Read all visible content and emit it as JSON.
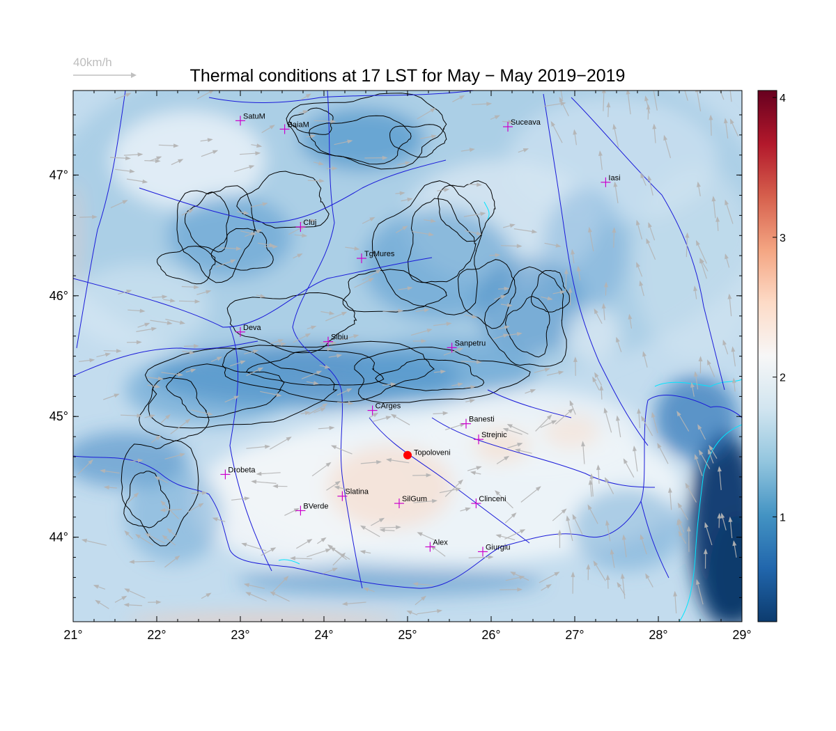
{
  "title": "Thermal conditions at 17 LST for May − May  2019−2019",
  "wind_reference": {
    "label": "40km/h",
    "speed_kmh": 40
  },
  "map": {
    "lon_range": [
      21,
      29
    ],
    "lat_range": [
      43.3,
      47.7
    ],
    "lon_ticks": [
      "21°",
      "22°",
      "23°",
      "24°",
      "25°",
      "26°",
      "27°",
      "28°",
      "29°"
    ],
    "lat_ticks": [
      "44°",
      "45°",
      "46°",
      "47°"
    ],
    "lon_tick_values": [
      21,
      22,
      23,
      24,
      25,
      26,
      27,
      28,
      29
    ],
    "lat_tick_values": [
      44,
      45,
      46,
      47
    ]
  },
  "colorbar": {
    "min": 0.25,
    "max": 4.05,
    "ticks": [
      "1",
      "2",
      "3",
      "4"
    ],
    "tick_values": [
      1,
      2,
      3,
      4
    ],
    "colors": [
      "#0c3b6e",
      "#2166ac",
      "#4393c3",
      "#92c5de",
      "#d1e5f0",
      "#f7f7f7",
      "#fddbc7",
      "#f4a582",
      "#d6604d",
      "#b2182b",
      "#67001f"
    ]
  },
  "cities": [
    {
      "name": "SatuM",
      "lon": 23.0,
      "lat": 47.45
    },
    {
      "name": "BaiaM",
      "lon": 23.53,
      "lat": 47.38
    },
    {
      "name": "Suceava",
      "lon": 26.2,
      "lat": 47.4
    },
    {
      "name": "Iasi",
      "lon": 27.37,
      "lat": 46.94
    },
    {
      "name": "Cluj",
      "lon": 23.72,
      "lat": 46.57
    },
    {
      "name": "TgMures",
      "lon": 24.45,
      "lat": 46.31
    },
    {
      "name": "Deva",
      "lon": 23.0,
      "lat": 45.7
    },
    {
      "name": "Sibiu",
      "lon": 24.05,
      "lat": 45.62
    },
    {
      "name": "Sanpetru",
      "lon": 25.53,
      "lat": 45.57
    },
    {
      "name": "CArges",
      "lon": 24.58,
      "lat": 45.05
    },
    {
      "name": "Banesti",
      "lon": 25.7,
      "lat": 44.94
    },
    {
      "name": "Strejnic",
      "lon": 25.85,
      "lat": 44.81
    },
    {
      "name": "Drobeta",
      "lon": 22.82,
      "lat": 44.52
    },
    {
      "name": "Slatina",
      "lon": 24.22,
      "lat": 44.34
    },
    {
      "name": "SilGum",
      "lon": 24.9,
      "lat": 44.28
    },
    {
      "name": "Clinceni",
      "lon": 25.82,
      "lat": 44.28
    },
    {
      "name": "BVerde",
      "lon": 23.72,
      "lat": 44.22
    },
    {
      "name": "Alex",
      "lon": 25.27,
      "lat": 43.92
    },
    {
      "name": "Giurgiu",
      "lon": 25.9,
      "lat": 43.88
    }
  ],
  "site": {
    "name": "Topoloveni",
    "lon": 25.0,
    "lat": 44.68
  },
  "colors": {
    "city_marker": "#cc00cc",
    "site_marker": "#ff0000",
    "rivers": "#1a1ad9",
    "contours": "#000000",
    "wind_arrows": "#b4b4b4",
    "coast": "#00e5ff"
  }
}
